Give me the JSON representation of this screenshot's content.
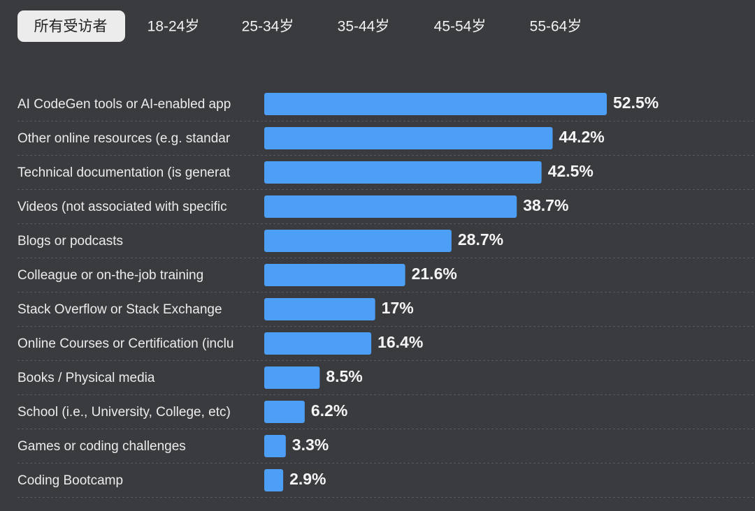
{
  "tabs": [
    "所有受访者",
    "18-24岁",
    "25-34岁",
    "35-44岁",
    "45-54岁",
    "55-64岁"
  ],
  "chart_data": {
    "type": "bar",
    "orientation": "horizontal",
    "color": "#4d9ef5",
    "categories": [
      "AI CodeGen tools or AI-enabled app",
      "Other online resources (e.g. standar",
      "Technical documentation (is generat",
      "Videos (not associated with specific",
      "Blogs or podcasts",
      "Colleague or on-the-job training",
      "Stack Overflow or Stack Exchange",
      "Online Courses or Certification (inclu",
      "Books / Physical media",
      "School (i.e., University, College, etc)",
      "Games or coding challenges",
      "Coding Bootcamp"
    ],
    "values": [
      52.5,
      44.2,
      42.5,
      38.7,
      28.7,
      21.6,
      17,
      16.4,
      8.5,
      6.2,
      3.3,
      2.9
    ],
    "value_labels": [
      "52.5%",
      "44.2%",
      "42.5%",
      "38.7%",
      "28.7%",
      "21.6%",
      "17%",
      "16.4%",
      "8.5%",
      "6.2%",
      "3.3%",
      "2.9%"
    ]
  }
}
